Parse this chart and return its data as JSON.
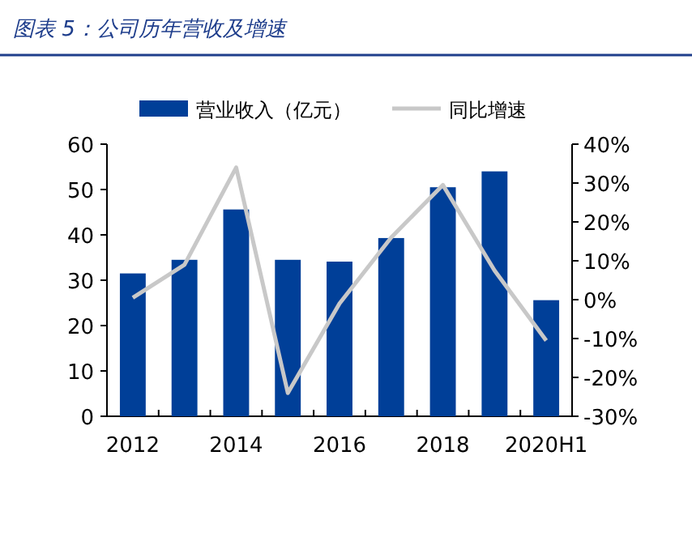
{
  "chart_data": {
    "type": "bar",
    "title": "图表 5：公司历年营收及增速",
    "categories": [
      "2012",
      null,
      "2014",
      null,
      "2016",
      null,
      "2018",
      null,
      "2020H1"
    ],
    "series": [
      {
        "name": "营业收入（亿元）",
        "color": "#003f98",
        "values": [
          31.5,
          34.5,
          45.6,
          34.5,
          34.1,
          39.3,
          50.5,
          54.0,
          25.6
        ]
      },
      {
        "name": "同比增速",
        "type": "line",
        "axis": "y2",
        "color": "#c8c8c8",
        "values": [
          0.5,
          9,
          34,
          -24,
          -1,
          16,
          29.5,
          7.5,
          -10.5
        ]
      }
    ],
    "ylim": [
      0,
      60
    ],
    "yticks": [
      0,
      10,
      20,
      30,
      40,
      50,
      60
    ],
    "y2lim": [
      -30,
      40
    ],
    "y2ticks": [
      {
        "value": -30,
        "label": "-30%"
      },
      {
        "value": -20,
        "label": "-20%"
      },
      {
        "value": -10,
        "label": "-10%"
      },
      {
        "value": 0,
        "label": "0%"
      },
      {
        "value": 10,
        "label": "10%"
      },
      {
        "value": 20,
        "label": "20%"
      },
      {
        "value": 30,
        "label": "30%"
      },
      {
        "value": 40,
        "label": "40%"
      }
    ],
    "grid": false,
    "legend": "top",
    "marker": "none",
    "line_style": "solid"
  }
}
